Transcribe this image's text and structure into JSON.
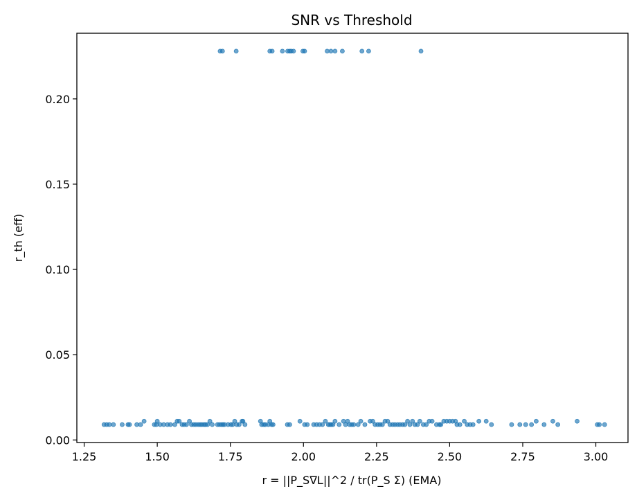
{
  "chart_data": {
    "type": "scatter",
    "title": "SNR vs Threshold",
    "xlabel": "r = ||P_S∇L||^2 / tr(P_S Σ) (EMA)",
    "ylabel": "r_th (eff)",
    "xlim": [
      1.225,
      3.11
    ],
    "ylim": [
      -0.0015,
      0.2385
    ],
    "xticks": [
      1.25,
      1.5,
      1.75,
      2.0,
      2.25,
      2.5,
      2.75,
      3.0
    ],
    "xtick_labels": [
      "1.25",
      "1.50",
      "1.75",
      "2.00",
      "2.25",
      "2.50",
      "2.75",
      "3.00"
    ],
    "yticks": [
      0.0,
      0.05,
      0.1,
      0.15,
      0.2
    ],
    "ytick_labels": [
      "0.00",
      "0.05",
      "0.10",
      "0.15",
      "0.20"
    ],
    "grid": false,
    "marker_color": "#1f77b4",
    "marker_alpha": 0.65,
    "series": [
      {
        "points": [
          [
            1.715,
            0.228
          ],
          [
            1.723,
            0.228
          ],
          [
            1.77,
            0.228
          ],
          [
            1.885,
            0.228
          ],
          [
            1.893,
            0.228
          ],
          [
            1.928,
            0.228
          ],
          [
            1.946,
            0.228
          ],
          [
            1.953,
            0.228
          ],
          [
            1.958,
            0.228
          ],
          [
            1.966,
            0.228
          ],
          [
            1.998,
            0.228
          ],
          [
            2.004,
            0.228
          ],
          [
            2.081,
            0.228
          ],
          [
            2.094,
            0.228
          ],
          [
            2.108,
            0.228
          ],
          [
            2.133,
            0.228
          ],
          [
            2.2,
            0.228
          ],
          [
            2.223,
            0.228
          ],
          [
            2.402,
            0.228
          ],
          [
            1.318,
            0.009
          ],
          [
            1.327,
            0.009
          ],
          [
            1.336,
            0.009
          ],
          [
            1.35,
            0.009
          ],
          [
            1.38,
            0.009
          ],
          [
            1.4,
            0.009
          ],
          [
            1.405,
            0.009
          ],
          [
            1.43,
            0.009
          ],
          [
            1.443,
            0.009
          ],
          [
            1.455,
            0.011
          ],
          [
            1.49,
            0.009
          ],
          [
            1.497,
            0.009
          ],
          [
            1.5,
            0.011
          ],
          [
            1.51,
            0.009
          ],
          [
            1.522,
            0.009
          ],
          [
            1.535,
            0.009
          ],
          [
            1.545,
            0.009
          ],
          [
            1.56,
            0.009
          ],
          [
            1.568,
            0.011
          ],
          [
            1.575,
            0.011
          ],
          [
            1.585,
            0.009
          ],
          [
            1.592,
            0.009
          ],
          [
            1.6,
            0.009
          ],
          [
            1.61,
            0.011
          ],
          [
            1.617,
            0.009
          ],
          [
            1.625,
            0.009
          ],
          [
            1.632,
            0.009
          ],
          [
            1.64,
            0.009
          ],
          [
            1.647,
            0.009
          ],
          [
            1.653,
            0.009
          ],
          [
            1.66,
            0.009
          ],
          [
            1.665,
            0.009
          ],
          [
            1.672,
            0.009
          ],
          [
            1.68,
            0.011
          ],
          [
            1.688,
            0.009
          ],
          [
            1.706,
            0.009
          ],
          [
            1.713,
            0.009
          ],
          [
            1.72,
            0.009
          ],
          [
            1.725,
            0.009
          ],
          [
            1.73,
            0.009
          ],
          [
            1.742,
            0.009
          ],
          [
            1.752,
            0.009
          ],
          [
            1.758,
            0.009
          ],
          [
            1.765,
            0.011
          ],
          [
            1.772,
            0.009
          ],
          [
            1.78,
            0.009
          ],
          [
            1.79,
            0.011
          ],
          [
            1.793,
            0.011
          ],
          [
            1.8,
            0.009
          ],
          [
            1.853,
            0.011
          ],
          [
            1.857,
            0.009
          ],
          [
            1.864,
            0.009
          ],
          [
            1.87,
            0.009
          ],
          [
            1.88,
            0.009
          ],
          [
            1.885,
            0.011
          ],
          [
            1.891,
            0.009
          ],
          [
            1.896,
            0.009
          ],
          [
            1.945,
            0.009
          ],
          [
            1.953,
            0.009
          ],
          [
            1.988,
            0.011
          ],
          [
            2.004,
            0.009
          ],
          [
            2.013,
            0.009
          ],
          [
            2.035,
            0.009
          ],
          [
            2.045,
            0.009
          ],
          [
            2.055,
            0.009
          ],
          [
            2.065,
            0.009
          ],
          [
            2.075,
            0.011
          ],
          [
            2.085,
            0.009
          ],
          [
            2.09,
            0.009
          ],
          [
            2.095,
            0.009
          ],
          [
            2.101,
            0.009
          ],
          [
            2.108,
            0.011
          ],
          [
            2.122,
            0.009
          ],
          [
            2.137,
            0.011
          ],
          [
            2.144,
            0.009
          ],
          [
            2.151,
            0.011
          ],
          [
            2.158,
            0.009
          ],
          [
            2.165,
            0.009
          ],
          [
            2.172,
            0.009
          ],
          [
            2.187,
            0.009
          ],
          [
            2.196,
            0.011
          ],
          [
            2.21,
            0.009
          ],
          [
            2.228,
            0.011
          ],
          [
            2.237,
            0.011
          ],
          [
            2.245,
            0.009
          ],
          [
            2.254,
            0.009
          ],
          [
            2.262,
            0.009
          ],
          [
            2.27,
            0.009
          ],
          [
            2.279,
            0.011
          ],
          [
            2.288,
            0.011
          ],
          [
            2.296,
            0.009
          ],
          [
            2.305,
            0.009
          ],
          [
            2.313,
            0.009
          ],
          [
            2.322,
            0.009
          ],
          [
            2.33,
            0.009
          ],
          [
            2.339,
            0.009
          ],
          [
            2.347,
            0.009
          ],
          [
            2.356,
            0.011
          ],
          [
            2.364,
            0.009
          ],
          [
            2.373,
            0.011
          ],
          [
            2.381,
            0.009
          ],
          [
            2.39,
            0.009
          ],
          [
            2.398,
            0.011
          ],
          [
            2.41,
            0.009
          ],
          [
            2.42,
            0.009
          ],
          [
            2.43,
            0.011
          ],
          [
            2.44,
            0.011
          ],
          [
            2.455,
            0.009
          ],
          [
            2.465,
            0.009
          ],
          [
            2.47,
            0.009
          ],
          [
            2.48,
            0.011
          ],
          [
            2.49,
            0.011
          ],
          [
            2.5,
            0.011
          ],
          [
            2.51,
            0.011
          ],
          [
            2.52,
            0.011
          ],
          [
            2.525,
            0.009
          ],
          [
            2.535,
            0.009
          ],
          [
            2.55,
            0.011
          ],
          [
            2.56,
            0.009
          ],
          [
            2.57,
            0.009
          ],
          [
            2.58,
            0.009
          ],
          [
            2.6,
            0.011
          ],
          [
            2.625,
            0.011
          ],
          [
            2.643,
            0.009
          ],
          [
            2.712,
            0.009
          ],
          [
            2.74,
            0.009
          ],
          [
            2.76,
            0.009
          ],
          [
            2.78,
            0.009
          ],
          [
            2.796,
            0.011
          ],
          [
            2.823,
            0.009
          ],
          [
            2.853,
            0.011
          ],
          [
            2.87,
            0.009
          ],
          [
            2.936,
            0.011
          ],
          [
            3.005,
            0.009
          ],
          [
            3.012,
            0.009
          ],
          [
            3.03,
            0.009
          ]
        ]
      }
    ]
  }
}
